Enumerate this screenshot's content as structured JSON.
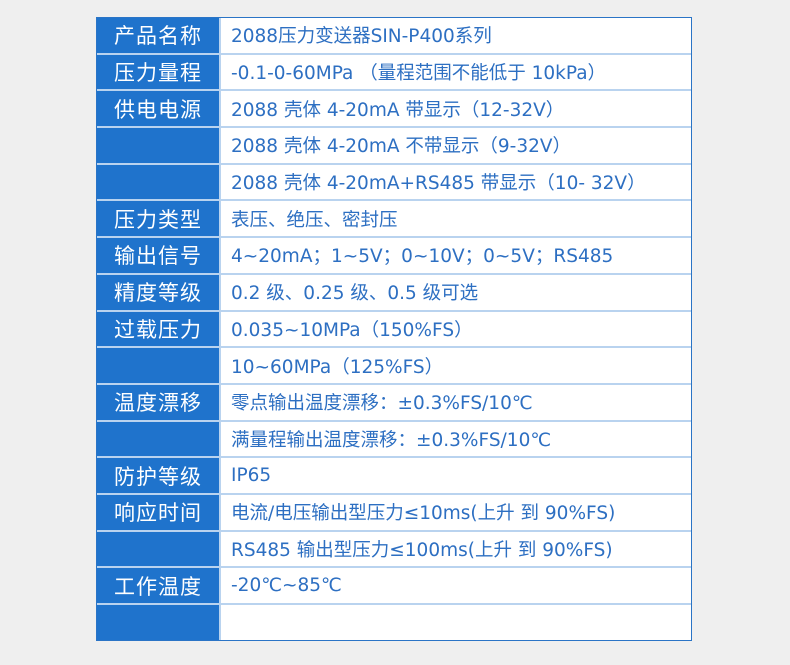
{
  "rows": [
    {
      "label": "产品名称",
      "value": "2088压力变送器SIN-P400系列"
    },
    {
      "label": "压力量程",
      "value": "-0.1-0-60MPa （量程范围不能低于 10kPa）"
    },
    {
      "label": "供电电源",
      "value": "2088 壳体 4-20mA 带显示（12-32V）"
    },
    {
      "label": "",
      "value": "2088 壳体 4-20mA 不带显示（9-32V）"
    },
    {
      "label": "",
      "value": "2088 壳体 4-20mA+RS485 带显示（10- 32V）"
    },
    {
      "label": "压力类型",
      "value": "表压、绝压、密封压"
    },
    {
      "label": "输出信号",
      "value": "4~20mA；1~5V；0~10V；0~5V；RS485"
    },
    {
      "label": "精度等级",
      "value": "0.2 级、0.25 级、0.5 级可选"
    },
    {
      "label": "过载压力",
      "value": "0.035~10MPa（150%FS）"
    },
    {
      "label": "",
      "value": "10~60MPa（125%FS）"
    },
    {
      "label": "温度漂移",
      "value": "零点输出温度漂移：±0.3%FS/10℃"
    },
    {
      "label": "",
      "value": "满量程输出温度漂移：±0.3%FS/10℃"
    },
    {
      "label": "防护等级",
      "value": "IP65"
    },
    {
      "label": "响应时间",
      "value": "电流/电压输出型压力≤10ms(上升 到 90%FS)"
    },
    {
      "label": "",
      "value": "RS485 输出型压力≤100ms(上升 到 90%FS)"
    },
    {
      "label": "工作温度",
      "value": "-20℃~85℃"
    },
    {
      "label": "",
      "value": ""
    }
  ]
}
